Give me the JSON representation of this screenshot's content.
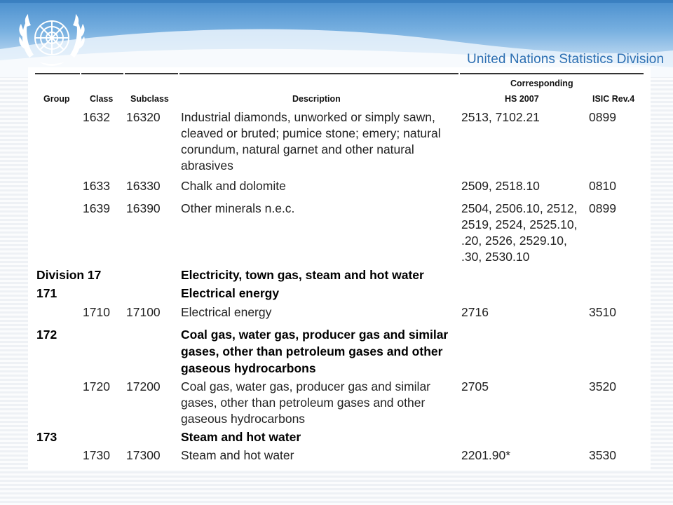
{
  "header": {
    "org_name": "United Nations Statistics Division",
    "logo_icon": "un-emblem-icon"
  },
  "table": {
    "columns": {
      "group": "Group",
      "class": "Class",
      "subclass": "Subclass",
      "description": "Description",
      "corresponding": "Corresponding",
      "hs": "HS 2007",
      "isic": "ISIC Rev.4"
    },
    "rows": [
      {
        "group": "",
        "class": "1632",
        "subclass": "16320",
        "desc": [
          "Industrial diamonds, unworked or simply sawn,",
          "cleaved or bruted; pumice stone; emery; natural",
          "corundum, natural garnet and other natural",
          "abrasives"
        ],
        "hs": [
          "2513, 7102.21"
        ],
        "isic": "0899",
        "bold": false
      },
      {
        "group": "",
        "class": "1633",
        "subclass": "16330",
        "desc": [
          "Chalk and dolomite"
        ],
        "hs": [
          "2509, 2518.10"
        ],
        "isic": "0810",
        "bold": false
      },
      {
        "group": "",
        "class": "1639",
        "subclass": "16390",
        "desc": [
          "Other minerals n.e.c."
        ],
        "hs": [
          "2504, 2506.10, 2512,",
          "2519, 2524, 2525.10,",
          ".20, 2526, 2529.10,",
          ".30, 2530.10"
        ],
        "isic": "0899",
        "bold": false
      },
      {
        "group": "Division 17",
        "class": "",
        "subclass": "",
        "desc": [
          "Electricity, town gas, steam and hot water"
        ],
        "hs": [],
        "isic": "",
        "bold": true
      },
      {
        "group": "171",
        "class": "",
        "subclass": "",
        "desc": [
          "Electrical energy"
        ],
        "hs": [],
        "isic": "",
        "bold": true
      },
      {
        "group": "",
        "class": "1710",
        "subclass": "17100",
        "desc": [
          "Electrical energy"
        ],
        "hs": [
          "2716"
        ],
        "isic": "3510",
        "bold": false
      },
      {
        "group": "172",
        "class": "",
        "subclass": "",
        "desc": [
          "Coal gas, water gas, producer gas and similar",
          "gases, other than petroleum gases and other",
          "gaseous hydrocarbons"
        ],
        "hs": [],
        "isic": "",
        "bold": true
      },
      {
        "group": "",
        "class": "1720",
        "subclass": "17200",
        "desc": [
          "Coal gas, water gas, producer gas and similar",
          "gases, other than petroleum gases and other",
          "gaseous hydrocarbons"
        ],
        "hs": [
          "2705"
        ],
        "isic": "3520",
        "bold": false
      },
      {
        "group": "173",
        "class": "",
        "subclass": "",
        "desc": [
          "Steam and hot water"
        ],
        "hs": [],
        "isic": "",
        "bold": true
      },
      {
        "group": "",
        "class": "1730",
        "subclass": "17300",
        "desc": [
          "Steam and hot water"
        ],
        "hs": [
          "2201.90*"
        ],
        "isic": "3530",
        "bold": false
      }
    ]
  }
}
